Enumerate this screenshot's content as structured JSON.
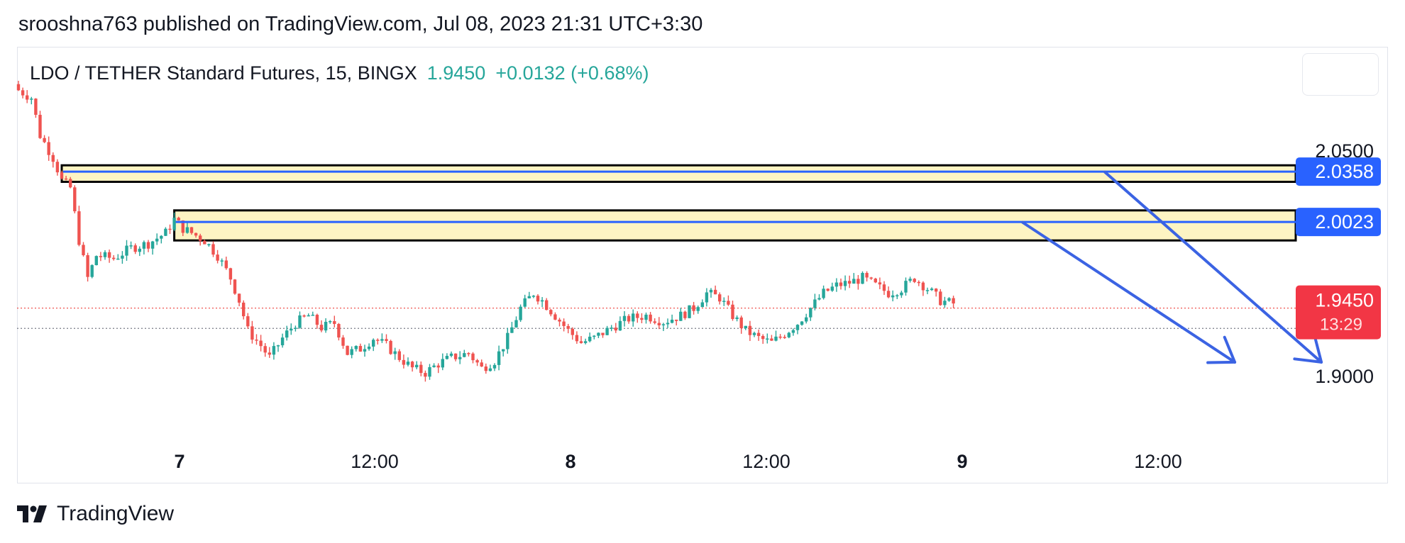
{
  "header": {
    "publish_line": "srooshna763 published on TradingView.com, Jul 08, 2023 21:31 UTC+3:30"
  },
  "legend": {
    "symbol": "LDO / TETHER Standard Futures, 15, BINGX",
    "price": "1.9450",
    "change": "+0.0132 (+0.68%)"
  },
  "colors": {
    "up": "#26a69a",
    "down": "#ef5350",
    "zone_fill": "#fdf4c3",
    "zone_border": "#000000",
    "level_line": "#2962ff",
    "arrow": "#3b63e3",
    "price_tag": "#f23645"
  },
  "chart_data": {
    "type": "candlestick",
    "x_tick_labels": [
      "7",
      "12:00",
      "8",
      "12:00",
      "9",
      "12:00"
    ],
    "x_tick_bold": [
      true,
      false,
      true,
      false,
      true,
      false
    ],
    "y_tick_labels": [
      "2.0500",
      "1.9000"
    ],
    "y_ticks": [
      2.05,
      1.9
    ],
    "ylim": [
      1.86,
      2.11
    ],
    "price_tags": [
      {
        "label": "2.0358",
        "value": 2.0358,
        "kind": "level"
      },
      {
        "label": "2.0023",
        "value": 2.0023,
        "kind": "level"
      },
      {
        "label": "1.9450",
        "sub": "13:29",
        "value": 1.945,
        "kind": "last"
      }
    ],
    "zones": [
      {
        "top": 2.04,
        "bottom": 2.029,
        "level": 2.0358,
        "start_bar": 10
      },
      {
        "top": 2.01,
        "bottom": 1.99,
        "level": 2.0023,
        "start_bar": 36
      }
    ],
    "dotted_lines": [
      1.945,
      1.9315
    ],
    "arrows": [
      {
        "from_bar": 251,
        "from": 2.0355,
        "to_bar": 301,
        "to": 1.909
      },
      {
        "from_bar": 232,
        "from": 2.002,
        "to_bar": 281,
        "to": 1.909
      }
    ],
    "close_path": [
      [
        0,
        2.09
      ],
      [
        3,
        2.085
      ],
      [
        5,
        2.06
      ],
      [
        8,
        2.045
      ],
      [
        10,
        2.03
      ],
      [
        12,
        2.025
      ],
      [
        14,
        1.99
      ],
      [
        16,
        1.965
      ],
      [
        18,
        1.98
      ],
      [
        22,
        1.978
      ],
      [
        26,
        1.985
      ],
      [
        30,
        1.988
      ],
      [
        34,
        1.995
      ],
      [
        36,
        2.004
      ],
      [
        38,
        1.998
      ],
      [
        40,
        1.995
      ],
      [
        43,
        1.99
      ],
      [
        46,
        1.98
      ],
      [
        49,
        1.965
      ],
      [
        51,
        1.95
      ],
      [
        53,
        1.93
      ],
      [
        56,
        1.92
      ],
      [
        58,
        1.912
      ],
      [
        61,
        1.925
      ],
      [
        64,
        1.935
      ],
      [
        67,
        1.94
      ],
      [
        70,
        1.932
      ],
      [
        73,
        1.935
      ],
      [
        76,
        1.915
      ],
      [
        79,
        1.918
      ],
      [
        82,
        1.925
      ],
      [
        85,
        1.92
      ],
      [
        88,
        1.912
      ],
      [
        91,
        1.905
      ],
      [
        94,
        1.902
      ],
      [
        97,
        1.908
      ],
      [
        100,
        1.912
      ],
      [
        104,
        1.915
      ],
      [
        107,
        1.905
      ],
      [
        110,
        1.91
      ],
      [
        113,
        1.925
      ],
      [
        116,
        1.945
      ],
      [
        119,
        1.955
      ],
      [
        121,
        1.95
      ],
      [
        124,
        1.94
      ],
      [
        127,
        1.93
      ],
      [
        130,
        1.922
      ],
      [
        133,
        1.925
      ],
      [
        137,
        1.932
      ],
      [
        141,
        1.938
      ],
      [
        145,
        1.94
      ],
      [
        149,
        1.936
      ],
      [
        153,
        1.94
      ],
      [
        156,
        1.945
      ],
      [
        159,
        1.955
      ],
      [
        162,
        1.952
      ],
      [
        165,
        1.94
      ],
      [
        168,
        1.93
      ],
      [
        171,
        1.925
      ],
      [
        174,
        1.922
      ],
      [
        177,
        1.928
      ],
      [
        180,
        1.935
      ],
      [
        183,
        1.945
      ],
      [
        186,
        1.955
      ],
      [
        189,
        1.96
      ],
      [
        192,
        1.962
      ],
      [
        195,
        1.965
      ],
      [
        198,
        1.96
      ],
      [
        201,
        1.955
      ],
      [
        204,
        1.958
      ],
      [
        207,
        1.965
      ],
      [
        210,
        1.958
      ],
      [
        213,
        1.95
      ],
      [
        216,
        1.948
      ]
    ]
  },
  "brand": {
    "name": "TradingView"
  }
}
